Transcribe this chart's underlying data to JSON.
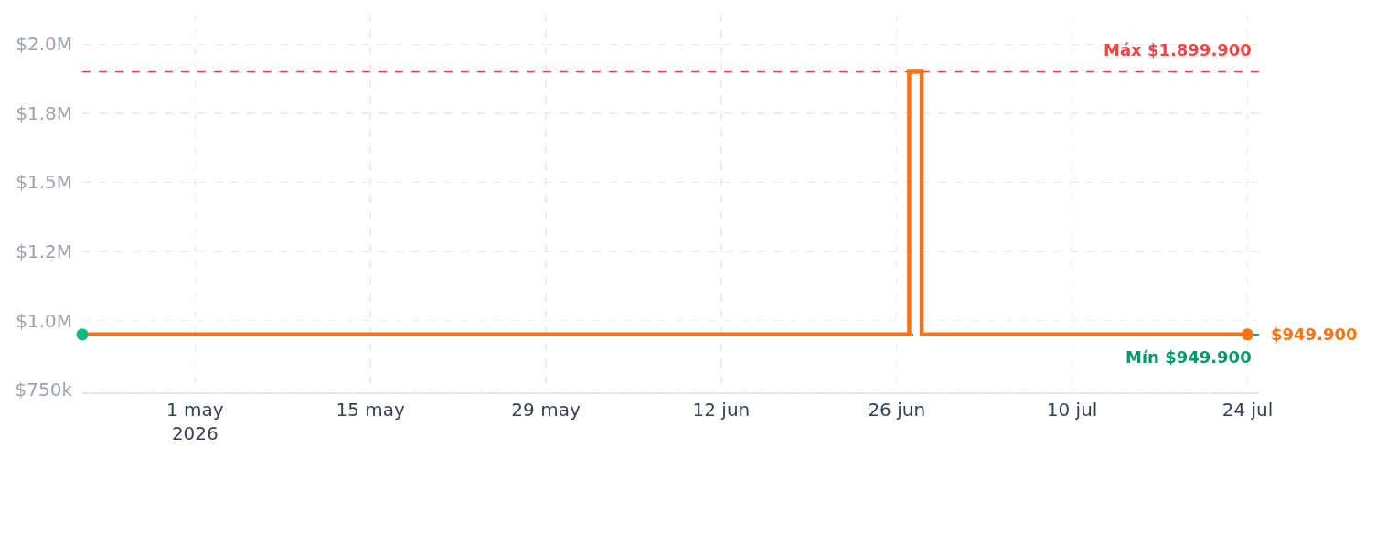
{
  "chart_data": {
    "type": "step",
    "series": [
      {
        "color": "#f97316",
        "x": [
          "2026-04-22",
          "2026-06-27",
          "2026-06-28",
          "2026-07-24"
        ],
        "values": [
          949900,
          1899900,
          949900,
          949900
        ]
      },
      {
        "type": "scatter",
        "color": "#f97316",
        "x": [
          "2026-07-24"
        ],
        "values": [
          949900
        ]
      },
      {
        "type": "scatter",
        "color": "#10b981",
        "x": [
          "2026-04-22"
        ],
        "values": [
          949900
        ]
      }
    ],
    "xlim": [
      "2026-04-22",
      "2026-07-24T22:00"
    ],
    "xticks": [
      {
        "value": "2026-05-01",
        "label": "1 may\n2026"
      },
      {
        "value": "2026-05-15",
        "label": "15 may"
      },
      {
        "value": "2026-05-29",
        "label": "29 may"
      },
      {
        "value": "2026-06-12",
        "label": "12 jun"
      },
      {
        "value": "2026-06-26",
        "label": "26 jun"
      },
      {
        "value": "2026-07-10",
        "label": "10 jul"
      },
      {
        "value": "2026-07-24",
        "label": "24 jul"
      }
    ],
    "ylim": [
      741000,
      2110000
    ],
    "yticks": [
      {
        "value": 750000,
        "label": "$750k"
      },
      {
        "value": 1000000,
        "label": "$1.0M"
      },
      {
        "value": 1250000,
        "label": "$1.2M"
      },
      {
        "value": 1500000,
        "label": "$1.5M"
      },
      {
        "value": 1750000,
        "label": "$1.8M"
      },
      {
        "value": 2000000,
        "label": "$2.0M"
      }
    ],
    "grid": true,
    "ref_lines": [
      {
        "axis": "y",
        "value": 1899900,
        "label": "Máx $1.899.900",
        "color": "#ef4444",
        "line_style": "dashed"
      },
      {
        "axis": "y",
        "value": 949900,
        "label": "Mín $949.900",
        "color": "#059669",
        "line_style": "dashed"
      }
    ],
    "annotations": [
      {
        "text": "$949.900",
        "x": "2026-07-24",
        "y": 949900
      }
    ]
  }
}
